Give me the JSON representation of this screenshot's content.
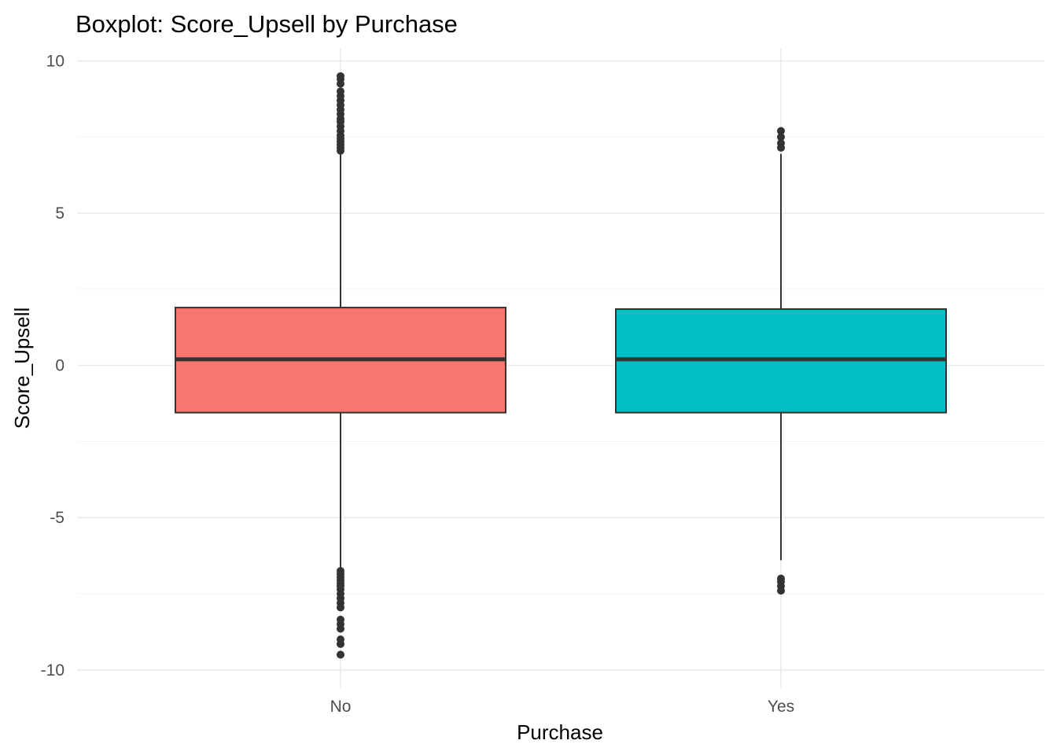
{
  "chart_data": {
    "type": "boxplot",
    "title": "Boxplot: Score_Upsell by Purchase",
    "xlabel": "Purchase",
    "ylabel": "Score_Upsell",
    "ylim": [
      -10.6,
      10.4
    ],
    "yticks": [
      -10,
      -5,
      0,
      5,
      10
    ],
    "ytick_labels": [
      "-10",
      "-5",
      "0",
      "5",
      "10"
    ],
    "categories": [
      "No",
      "Yes"
    ],
    "grid": true,
    "legend": "none",
    "boxes": [
      {
        "category": "No",
        "color": "#F8766D",
        "q1": -1.55,
        "median": 0.2,
        "q3": 1.9,
        "whisker_low": -6.7,
        "whisker_high": 7.05,
        "outliers": [
          7.05,
          7.15,
          7.25,
          7.35,
          7.45,
          7.55,
          7.7,
          7.85,
          8.0,
          8.1,
          8.25,
          8.4,
          8.55,
          8.7,
          8.85,
          9.0,
          9.25,
          9.4,
          9.5,
          -6.75,
          -6.85,
          -6.95,
          -7.05,
          -7.15,
          -7.25,
          -7.35,
          -7.5,
          -7.65,
          -7.8,
          -7.95,
          -8.35,
          -8.5,
          -8.65,
          -9.0,
          -9.15,
          -9.5
        ]
      },
      {
        "category": "Yes",
        "color": "#00BFC4",
        "q1": -1.55,
        "median": 0.2,
        "q3": 1.85,
        "whisker_low": -6.4,
        "whisker_high": 6.95,
        "outliers": [
          7.15,
          7.3,
          7.5,
          7.7,
          -7.0,
          -7.1,
          -7.25,
          -7.4
        ]
      }
    ]
  }
}
